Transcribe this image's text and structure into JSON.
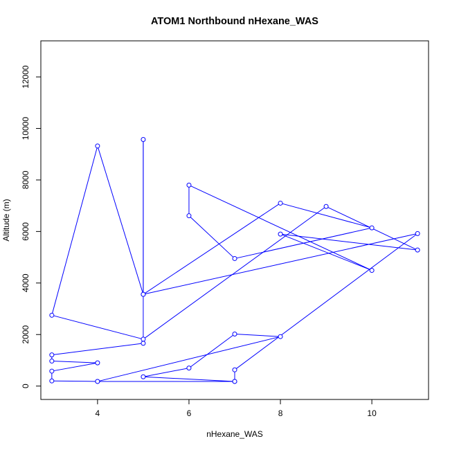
{
  "chart_data": {
    "type": "line",
    "title": "ATOM1 Northbound nHexane_WAS",
    "xlabel": "nHexane_WAS",
    "ylabel": "Altitude (m)",
    "xlim": [
      2.76,
      11.24
    ],
    "ylim": [
      -520,
      13400
    ],
    "x_ticks": [
      4,
      6,
      8,
      10
    ],
    "y_ticks": [
      0,
      2000,
      4000,
      6000,
      8000,
      10000,
      12000
    ],
    "grid": false,
    "legend": "none",
    "series": [
      {
        "color": "#0000ff",
        "marker": "open-circle",
        "x": [
          7,
          4,
          3,
          3,
          4,
          3,
          3,
          5,
          5,
          5,
          4,
          3,
          5,
          9,
          11,
          8,
          10,
          6,
          6,
          7,
          10,
          8,
          5,
          11,
          7,
          7,
          5,
          6,
          7,
          8,
          4
        ],
        "y": [
          180,
          180,
          200,
          580,
          900,
          970,
          1210,
          1660,
          9570,
          3560,
          9320,
          2750,
          1820,
          6970,
          5280,
          5900,
          4490,
          7800,
          6610,
          4950,
          6140,
          7100,
          3560,
          5920,
          630,
          180,
          360,
          700,
          2020,
          1920,
          180
        ]
      }
    ]
  }
}
